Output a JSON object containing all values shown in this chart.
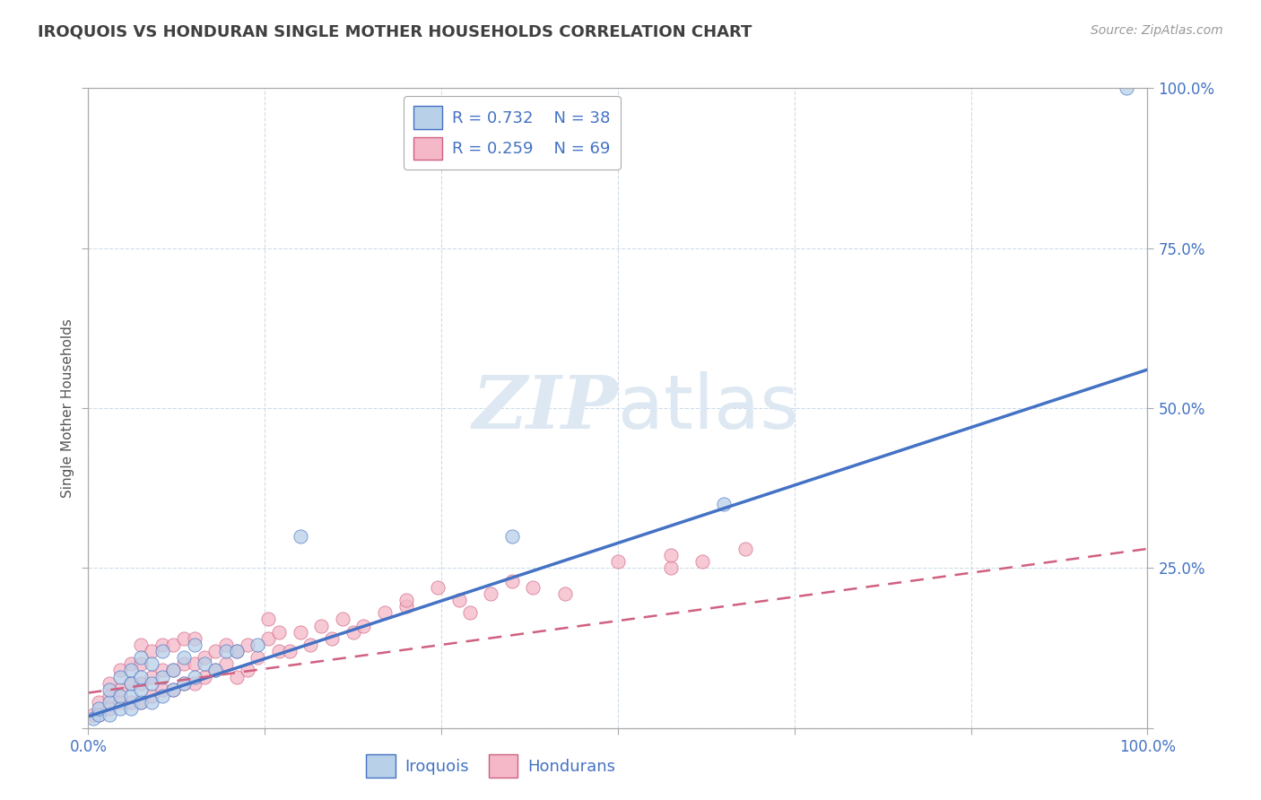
{
  "title": "IROQUOIS VS HONDURAN SINGLE MOTHER HOUSEHOLDS CORRELATION CHART",
  "source": "Source: ZipAtlas.com",
  "ylabel": "Single Mother Households",
  "xlim": [
    0,
    1.0
  ],
  "ylim": [
    0,
    1.0
  ],
  "watermark": "ZIPatlas",
  "legend_r1": "R = 0.732",
  "legend_n1": "N = 38",
  "legend_r2": "R = 0.259",
  "legend_n2": "N = 69",
  "iroquois_color": "#b8d0e8",
  "hondurans_color": "#f4b8c8",
  "iroquois_line_color": "#4472c4",
  "hondurans_line_color": "#d06080",
  "grid_color": "#c8d8e8",
  "title_color": "#404040",
  "tick_color": "#4472c4",
  "watermark_color": "#dde8f2",
  "bg_color": "#ffffff",
  "iroquois_x": [
    0.005,
    0.01,
    0.01,
    0.02,
    0.02,
    0.02,
    0.03,
    0.03,
    0.03,
    0.04,
    0.04,
    0.04,
    0.04,
    0.05,
    0.05,
    0.05,
    0.05,
    0.06,
    0.06,
    0.06,
    0.07,
    0.07,
    0.07,
    0.08,
    0.08,
    0.09,
    0.09,
    0.1,
    0.1,
    0.11,
    0.12,
    0.13,
    0.14,
    0.16,
    0.2,
    0.4,
    0.6,
    0.98
  ],
  "iroquois_y": [
    0.015,
    0.02,
    0.03,
    0.02,
    0.04,
    0.06,
    0.03,
    0.05,
    0.08,
    0.03,
    0.05,
    0.07,
    0.09,
    0.04,
    0.06,
    0.08,
    0.11,
    0.04,
    0.07,
    0.1,
    0.05,
    0.08,
    0.12,
    0.06,
    0.09,
    0.07,
    0.11,
    0.08,
    0.13,
    0.1,
    0.09,
    0.12,
    0.12,
    0.13,
    0.3,
    0.3,
    0.35,
    1.0
  ],
  "hondurans_x": [
    0.005,
    0.01,
    0.01,
    0.02,
    0.02,
    0.02,
    0.03,
    0.03,
    0.03,
    0.04,
    0.04,
    0.04,
    0.05,
    0.05,
    0.05,
    0.05,
    0.06,
    0.06,
    0.06,
    0.07,
    0.07,
    0.07,
    0.08,
    0.08,
    0.08,
    0.09,
    0.09,
    0.09,
    0.1,
    0.1,
    0.1,
    0.11,
    0.11,
    0.12,
    0.12,
    0.13,
    0.13,
    0.14,
    0.14,
    0.15,
    0.15,
    0.16,
    0.17,
    0.17,
    0.18,
    0.18,
    0.19,
    0.2,
    0.21,
    0.22,
    0.23,
    0.24,
    0.25,
    0.26,
    0.28,
    0.3,
    0.35,
    0.38,
    0.4,
    0.55,
    0.55,
    0.58,
    0.62,
    0.3,
    0.33,
    0.36,
    0.42,
    0.45,
    0.5
  ],
  "hondurans_y": [
    0.02,
    0.02,
    0.04,
    0.03,
    0.05,
    0.07,
    0.04,
    0.06,
    0.09,
    0.04,
    0.07,
    0.1,
    0.04,
    0.07,
    0.1,
    0.13,
    0.05,
    0.08,
    0.12,
    0.06,
    0.09,
    0.13,
    0.06,
    0.09,
    0.13,
    0.07,
    0.1,
    0.14,
    0.07,
    0.1,
    0.14,
    0.08,
    0.11,
    0.09,
    0.12,
    0.1,
    0.13,
    0.08,
    0.12,
    0.09,
    0.13,
    0.11,
    0.14,
    0.17,
    0.12,
    0.15,
    0.12,
    0.15,
    0.13,
    0.16,
    0.14,
    0.17,
    0.15,
    0.16,
    0.18,
    0.19,
    0.2,
    0.21,
    0.23,
    0.25,
    0.27,
    0.26,
    0.28,
    0.2,
    0.22,
    0.18,
    0.22,
    0.21,
    0.26
  ],
  "iroquois_line_x0": 0.0,
  "iroquois_line_y0": 0.018,
  "iroquois_line_x1": 1.0,
  "iroquois_line_y1": 0.56,
  "hondurans_line_x0": 0.0,
  "hondurans_line_y0": 0.055,
  "hondurans_line_x1": 1.0,
  "hondurans_line_y1": 0.28
}
